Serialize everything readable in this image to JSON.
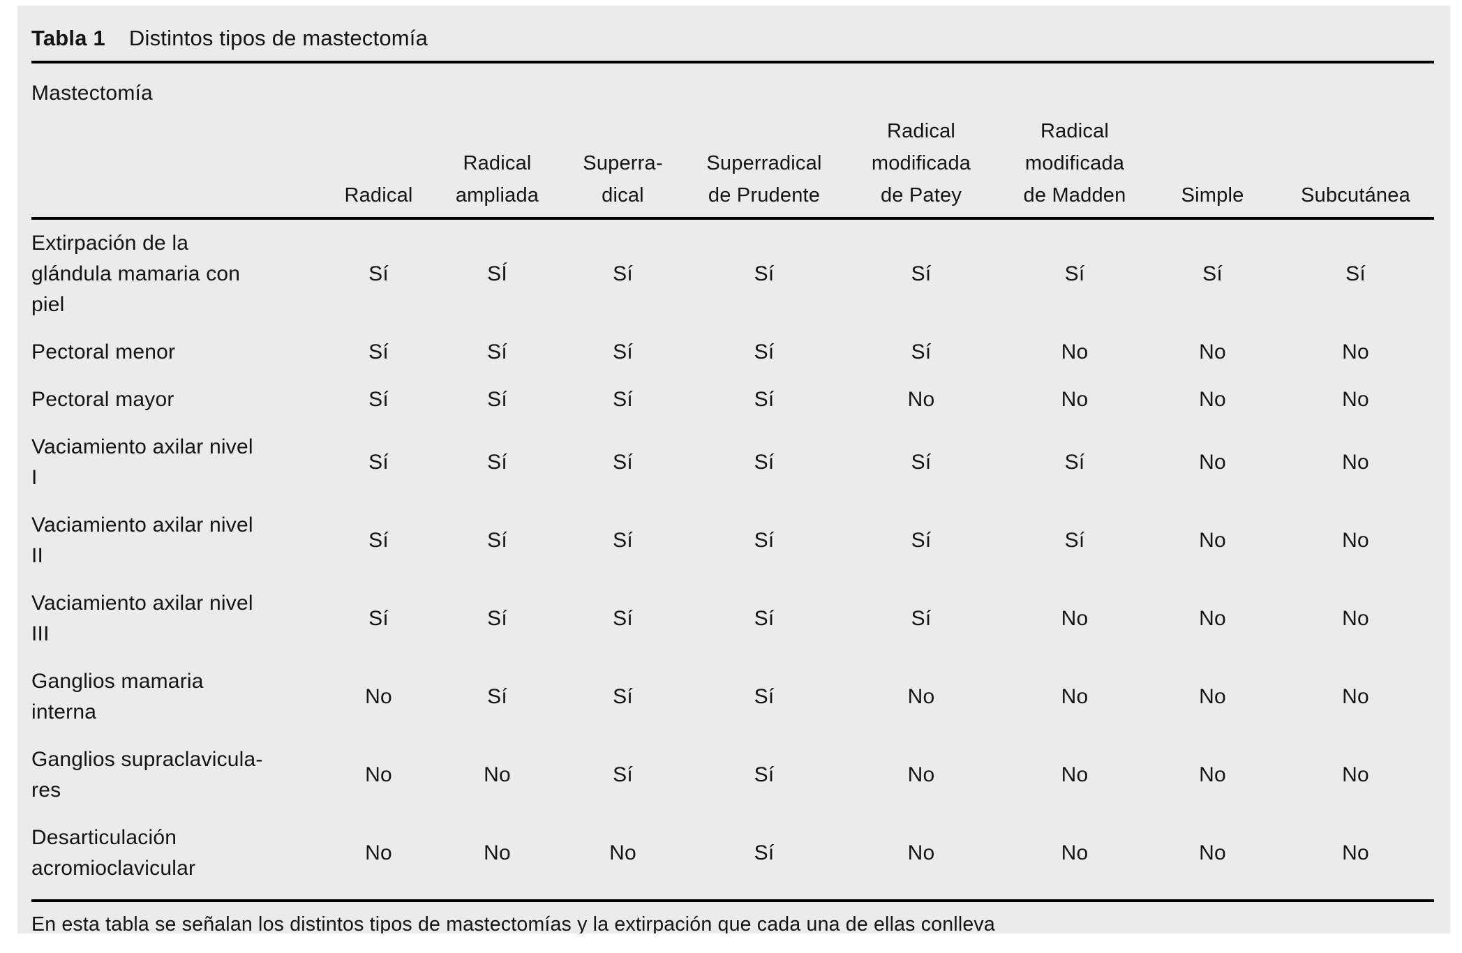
{
  "colors": {
    "panel_bg": "#ebebeb",
    "text": "#141414",
    "rule": "#000000",
    "page_bg": "#ffffff"
  },
  "table": {
    "label": "Tabla 1",
    "title": "Distintos tipos de mastectomía",
    "group_header": "Mastectomía",
    "columns": [
      "Radical",
      "Radical\nampliada",
      "Superra-\ndical",
      "Superradical\nde Prudente",
      "Radical\nmodificada\nde Patey",
      "Radical\nmodificada\nde Madden",
      "Simple",
      "Subcutánea"
    ],
    "rows": [
      {
        "label": "Extirpación de la\nglándula mamaria con\npiel",
        "values": [
          "Sí",
          "SÍ",
          "Sí",
          "Sí",
          "Sí",
          "Sí",
          "Sí",
          "Sí"
        ]
      },
      {
        "label": "Pectoral menor",
        "values": [
          "Sí",
          "Sí",
          "Sí",
          "Sí",
          "Sí",
          "No",
          "No",
          "No"
        ]
      },
      {
        "label": "Pectoral mayor",
        "values": [
          "Sí",
          "Sí",
          "Sí",
          "Sí",
          "No",
          "No",
          "No",
          "No"
        ]
      },
      {
        "label": "Vaciamiento axilar nivel\nI",
        "values": [
          "Sí",
          "Sí",
          "Sí",
          "Sí",
          "Sí",
          "Sí",
          "No",
          "No"
        ]
      },
      {
        "label": "Vaciamiento axilar nivel\nII",
        "values": [
          "Sí",
          "Sí",
          "Sí",
          "Sí",
          "Sí",
          "Sí",
          "No",
          "No"
        ]
      },
      {
        "label": "Vaciamiento axilar nivel\nIII",
        "values": [
          "Sí",
          "Sí",
          "Sí",
          "Sí",
          "Sí",
          "No",
          "No",
          "No"
        ]
      },
      {
        "label": "Ganglios mamaria\ninterna",
        "values": [
          "No",
          "Sí",
          "Sí",
          "Sí",
          "No",
          "No",
          "No",
          "No"
        ]
      },
      {
        "label": "Ganglios supraclavicula-\nres",
        "values": [
          "No",
          "No",
          "Sí",
          "Sí",
          "No",
          "No",
          "No",
          "No"
        ]
      },
      {
        "label": "Desarticulación\nacromioclavicular",
        "values": [
          "No",
          "No",
          "No",
          "Sí",
          "No",
          "No",
          "No",
          "No"
        ]
      }
    ],
    "footnote": "En esta tabla se señalan los distintos tipos de mastectomías y la extirpación que cada una de ellas conlleva"
  }
}
